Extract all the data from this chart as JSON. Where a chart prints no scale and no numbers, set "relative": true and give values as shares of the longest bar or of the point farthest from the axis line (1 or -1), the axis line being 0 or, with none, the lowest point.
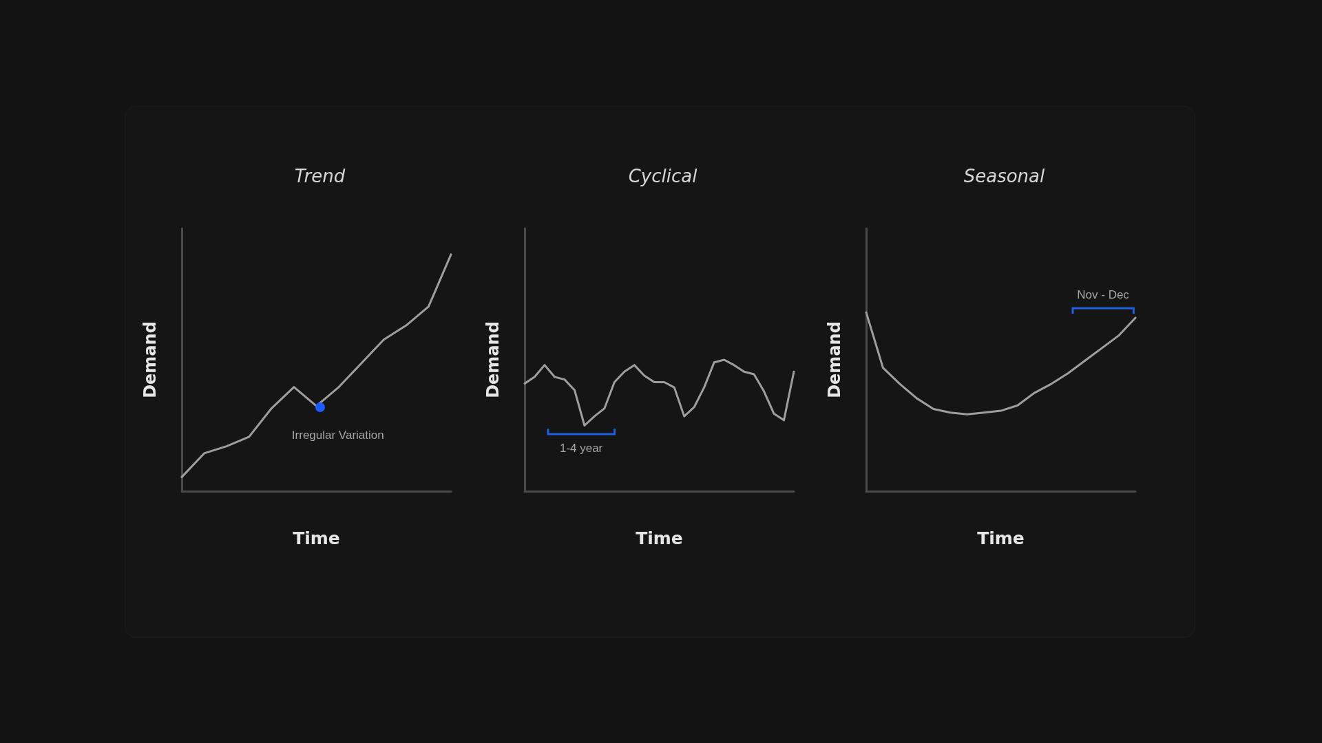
{
  "chart_data": [
    {
      "type": "line",
      "title": "Trend",
      "xlabel": "Time",
      "ylabel": "Demand",
      "relative": true,
      "grid": false,
      "marker": "none",
      "line_style": "solid",
      "categories": [
        null,
        null,
        null,
        null,
        null,
        null,
        null,
        null,
        null,
        null,
        null,
        null,
        null
      ],
      "series": [
        {
          "type": "line",
          "color": "#9e9e9e",
          "values": [
            0.06,
            0.16,
            0.19,
            0.23,
            0.35,
            0.44,
            0.36,
            0.44,
            0.54,
            0.64,
            0.7,
            0.78,
            1.0
          ]
        }
      ],
      "annotations": [
        "Irregular Variation"
      ]
    },
    {
      "type": "line",
      "title": "Cyclical",
      "xlabel": "Time",
      "ylabel": "Demand",
      "relative": true,
      "grid": false,
      "marker": "none",
      "line_style": "solid",
      "categories": [
        null,
        null,
        null,
        null,
        null,
        null,
        null,
        null,
        null,
        null,
        null,
        null,
        null,
        null,
        null,
        null,
        null,
        null,
        null,
        null,
        null,
        null,
        null,
        null,
        null,
        null,
        null,
        null
      ],
      "series": [
        {
          "type": "line",
          "color": "#9e9e9e",
          "values": [
            0.82,
            0.87,
            0.96,
            0.87,
            0.85,
            0.77,
            0.5,
            0.57,
            0.63,
            0.83,
            0.91,
            0.96,
            0.88,
            0.83,
            0.83,
            0.79,
            0.57,
            0.64,
            0.79,
            0.98,
            1.0,
            0.96,
            0.91,
            0.89,
            0.76,
            0.59,
            0.54,
            0.91
          ]
        }
      ],
      "annotations": [
        "1-4 year"
      ]
    },
    {
      "type": "line",
      "title": "Seasonal",
      "xlabel": "Time",
      "ylabel": "Demand",
      "relative": true,
      "grid": false,
      "marker": "none",
      "line_style": "solid",
      "categories": [
        null,
        null,
        null,
        null,
        null,
        null,
        null,
        null,
        null,
        null,
        null,
        null,
        null,
        null,
        null,
        null,
        null
      ],
      "series": [
        {
          "type": "line",
          "color": "#9e9e9e",
          "values": [
            1.0,
            0.69,
            0.6,
            0.52,
            0.46,
            0.44,
            0.43,
            0.44,
            0.45,
            0.48,
            0.55,
            0.6,
            0.66,
            0.73,
            0.8,
            0.87,
            0.97
          ]
        }
      ],
      "annotations": [
        "Nov - Dec"
      ]
    }
  ]
}
